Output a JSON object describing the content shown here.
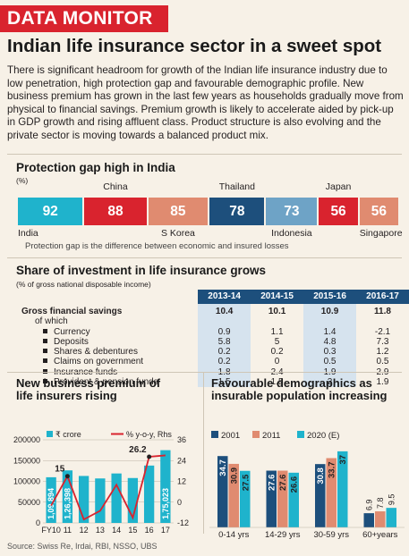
{
  "brand": "DATA MONITOR",
  "headline": "Indian life insurance sector in a sweet spot",
  "intro": "There is significant headroom for growth of the Indian life insurance industry due to low penetration, high protection gap and favourable demographic profile. New business premium has grown in the last few years as households gradually move from physical to financial savings. Premium growth is likely to accelerate aided by pick-up in GDP growth and rising affluent class. Product structure is also evolving and the private sector is moving towards a balanced product mix.",
  "protection_gap": {
    "title": "Protection gap high in India",
    "unit": "(%)",
    "note": "Protection gap is the difference between economic and insured losses"
  },
  "investment": {
    "title": "Share of investment in life insurance grows",
    "unit": "(% of gross national disposable income)"
  },
  "premium": {
    "title_line1": "New business premium of",
    "title_line2": "life insurers rising"
  },
  "demographics": {
    "title_line1": "Favourable demographics as",
    "title_line2": "insurable population increasing"
  },
  "source": "Source: Swiss Re, Irdai, RBI, NSSO, UBS",
  "chart_data": [
    {
      "type": "bar",
      "title": "Protection gap high in India",
      "ylabel": "(%)",
      "categories": [
        "India",
        "China",
        "S Korea",
        "Thailand",
        "Indonesia",
        "Japan",
        "Singapore"
      ],
      "values": [
        92,
        88,
        85,
        78,
        73,
        56,
        56
      ],
      "colors": [
        "#1fb3cc",
        "#d9232e",
        "#e08b70",
        "#1d4f7c",
        "#6ea3c6",
        "#d9232e",
        "#e08b70"
      ],
      "annotations": [
        "Protection gap is the difference between economic and insured losses"
      ]
    },
    {
      "type": "table",
      "title": "Share of investment in life insurance grows",
      "subtitle": "(% of gross national disposable income)",
      "columns": [
        "2013-14",
        "2014-15",
        "2015-16",
        "2016-17"
      ],
      "rows": [
        {
          "label": "Gross financial savings",
          "values": [
            "10.4",
            "10.1",
            "10.9",
            "11.8"
          ]
        },
        {
          "label": "of which",
          "values": [
            "",
            "",
            "",
            ""
          ]
        },
        {
          "label": "Currency",
          "values": [
            "0.9",
            "1.1",
            "1.4",
            "-2.1"
          ]
        },
        {
          "label": "Deposits",
          "values": [
            "5.8",
            "5",
            "4.8",
            "7.3"
          ]
        },
        {
          "label": "Shares & debentures",
          "values": [
            "0.2",
            "0.2",
            "0.3",
            "1.2"
          ]
        },
        {
          "label": "Claims on government",
          "values": [
            "0.2",
            "0",
            "0.5",
            "0.5"
          ]
        },
        {
          "label": "Insurance funds",
          "values": [
            "1.8",
            "2.4",
            "1.9",
            "2.9"
          ]
        },
        {
          "label": "Provident & pension funds",
          "values": [
            "1.5",
            "1.5",
            "2",
            "1.9"
          ]
        }
      ]
    },
    {
      "type": "bar",
      "title": "New business premium of life insurers rising",
      "x": [
        "FY10",
        "11",
        "12",
        "13",
        "14",
        "15",
        "16",
        "17"
      ],
      "series": [
        {
          "name": "₹ crore",
          "type": "bar",
          "axis": "left",
          "values": [
            109894,
            126398,
            113000,
            107000,
            119000,
            108000,
            138000,
            175023
          ],
          "labels": [
            "1,09,894",
            "1,26,398",
            "",
            "",
            "",
            "",
            "",
            "1,75,023"
          ],
          "color": "#1fb3cc"
        },
        {
          "name": "% y-o-y, Rhs",
          "type": "line",
          "axis": "right",
          "values": [
            -2,
            15,
            -10,
            -5,
            10,
            -9,
            26.2,
            27
          ],
          "labels": [
            "",
            "15",
            "",
            "",
            "",
            "",
            "26.2",
            ""
          ],
          "color": "#d9232e"
        }
      ],
      "ylim_left": [
        0,
        200000
      ],
      "yticks_left": [
        "0",
        "50000",
        "100000",
        "150000",
        "200000"
      ],
      "ylim_right": [
        -12,
        36
      ],
      "yticks_right": [
        "-12",
        "0",
        "12",
        "24",
        "36"
      ],
      "legend": "top"
    },
    {
      "type": "bar",
      "title": "Favourable demographics as insurable population increasing",
      "categories": [
        "0-14 yrs",
        "14-29 yrs",
        "30-59 yrs",
        "60+years"
      ],
      "series": [
        {
          "name": "2001",
          "values": [
            34.7,
            27.6,
            30.8,
            6.9
          ],
          "color": "#1d4f7c"
        },
        {
          "name": "2011",
          "values": [
            30.9,
            27.6,
            33.7,
            7.8
          ],
          "color": "#e08b70"
        },
        {
          "name": "2020 (E)",
          "values": [
            27.5,
            26.6,
            37.0,
            9.5
          ],
          "color": "#1fb3cc"
        }
      ],
      "labels": [
        [
          "34.7",
          "30.9",
          "27.5"
        ],
        [
          "27.6",
          "27.6",
          "26.6"
        ],
        [
          "30.8",
          "33.7",
          "37"
        ],
        [
          "6.9",
          "7.8",
          "9.5"
        ]
      ],
      "legend": "top-left"
    }
  ]
}
